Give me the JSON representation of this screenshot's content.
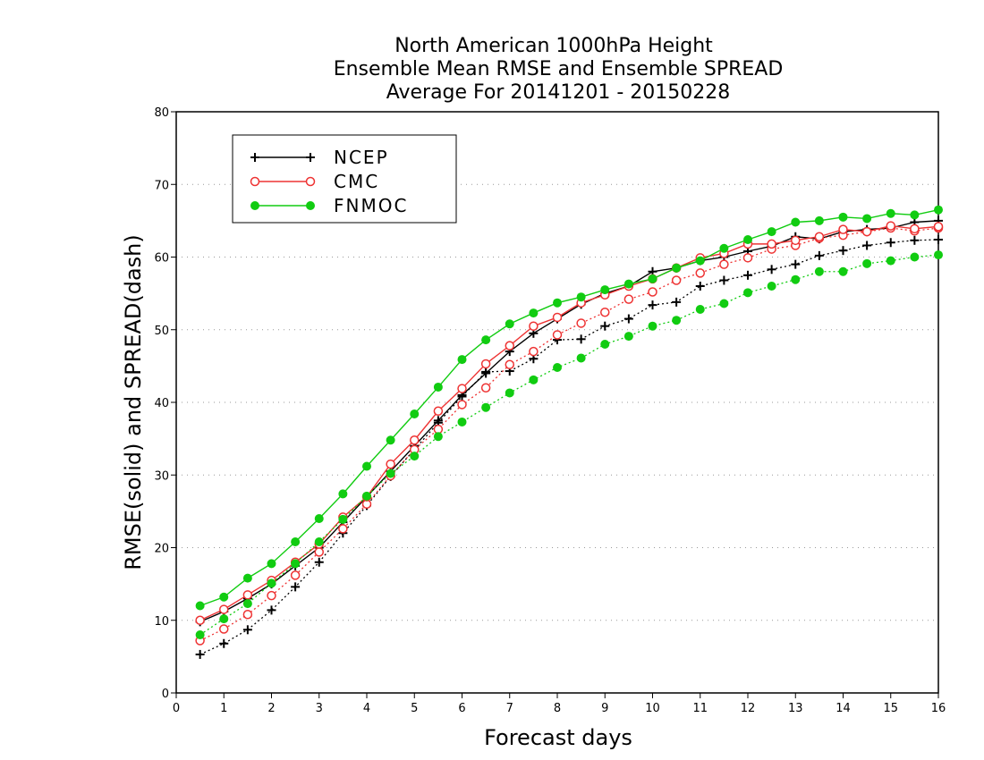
{
  "chart_data": {
    "type": "line",
    "title": [
      "North American 1000hPa Height",
      "Ensemble Mean RMSE and Ensemble SPREAD",
      "Average For 20141201 - 20150228"
    ],
    "xlabel": "Forecast days",
    "ylabel": "RMSE(solid) and SPREAD(dash)",
    "xlim": [
      0,
      16
    ],
    "ylim": [
      0,
      80
    ],
    "xticks": [
      0,
      1,
      2,
      3,
      4,
      5,
      6,
      7,
      8,
      9,
      10,
      11,
      12,
      13,
      14,
      15,
      16
    ],
    "yticks": [
      0,
      10,
      20,
      30,
      40,
      50,
      60,
      70,
      80
    ],
    "grid": "horizontal dotted",
    "legend_position": "top-left",
    "x": [
      0.5,
      1,
      1.5,
      2,
      2.5,
      3,
      3.5,
      4,
      4.5,
      5,
      5.5,
      6,
      6.5,
      7,
      7.5,
      8,
      8.5,
      9,
      9.5,
      10,
      10.5,
      11,
      11.5,
      12,
      12.5,
      13,
      13.5,
      14,
      14.5,
      15,
      15.5,
      16
    ],
    "series": [
      {
        "name": "NCEP",
        "color": "#000000",
        "marker": "plus",
        "rmse": [
          9.8,
          11.2,
          13.0,
          15.0,
          17.5,
          20.0,
          23.5,
          27.0,
          30.5,
          34.0,
          37.5,
          41.0,
          44.0,
          47.0,
          49.5,
          51.5,
          53.5,
          55.0,
          56.0,
          58.0,
          58.5,
          59.5,
          60.0,
          60.8,
          61.5,
          62.8,
          62.5,
          63.5,
          63.8,
          64.0,
          64.8,
          65.0
        ],
        "spread": [
          5.3,
          6.8,
          8.7,
          11.4,
          14.6,
          18.0,
          22.0,
          25.8,
          29.8,
          33.5,
          37.2,
          40.8,
          44.2,
          44.3,
          46.0,
          48.6,
          48.7,
          50.5,
          51.5,
          53.4,
          53.8,
          56.0,
          56.8,
          57.5,
          58.3,
          59.0,
          60.2,
          60.9,
          61.6,
          62.0,
          62.3,
          62.4
        ]
      },
      {
        "name": "CMC",
        "color": "#ee3333",
        "marker": "open-circle",
        "rmse": [
          10.0,
          11.5,
          13.5,
          15.5,
          18.0,
          20.5,
          24.2,
          27.0,
          31.5,
          34.8,
          38.8,
          41.9,
          45.3,
          47.8,
          50.5,
          51.7,
          53.7,
          54.8,
          56.0,
          57.0,
          58.5,
          59.9,
          60.5,
          61.8,
          61.8,
          62.3,
          62.8,
          63.8,
          63.5,
          64.3,
          63.9,
          64.2
        ],
        "spread": [
          7.2,
          8.8,
          10.8,
          13.4,
          16.2,
          19.4,
          22.6,
          26.0,
          29.9,
          33.5,
          36.3,
          39.7,
          42.0,
          45.2,
          47.0,
          49.3,
          50.9,
          52.4,
          54.2,
          55.2,
          56.8,
          57.8,
          59.0,
          59.9,
          61.1,
          61.6,
          62.6,
          63.0,
          63.5,
          64.0,
          63.6,
          64.0
        ]
      },
      {
        "name": "FNMOC",
        "color": "#11cc11",
        "marker": "filled-circle",
        "rmse": [
          12.0,
          13.2,
          15.8,
          17.8,
          20.8,
          24.0,
          27.4,
          31.2,
          34.8,
          38.4,
          42.1,
          45.9,
          48.6,
          50.8,
          52.3,
          53.7,
          54.5,
          55.5,
          56.3,
          57.0,
          58.5,
          59.5,
          61.2,
          62.4,
          63.5,
          64.8,
          65.0,
          65.5,
          65.3,
          66.0,
          65.8,
          66.5
        ],
        "spread": [
          8.0,
          10.2,
          12.3,
          15.1,
          17.8,
          20.8,
          23.9,
          27.1,
          30.2,
          32.6,
          35.3,
          37.3,
          39.3,
          41.3,
          43.1,
          44.8,
          46.1,
          48.0,
          49.1,
          50.5,
          51.3,
          52.8,
          53.6,
          55.1,
          56.0,
          56.9,
          58.0,
          58.0,
          59.1,
          59.5,
          60.0,
          60.3
        ]
      }
    ]
  }
}
